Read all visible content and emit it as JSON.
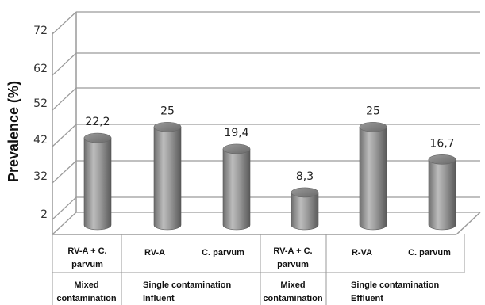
{
  "chart_data": {
    "type": "bar",
    "style": "3d-cylinder",
    "ylabel": "Prevalence (%)",
    "y_tick_labels": [
      "2",
      "32",
      "42",
      "52",
      "62",
      "72"
    ],
    "categories": [
      "RV-A + C. parvum",
      "RV-A",
      "C. parvum",
      "RV-A + C. parvum",
      "R-VA",
      "C. parvum"
    ],
    "category_lines": [
      [
        "RV-A + C.",
        "parvum"
      ],
      [
        "RV-A"
      ],
      [
        "C. parvum"
      ],
      [
        "RV-A + C.",
        "parvum"
      ],
      [
        "R-VA"
      ],
      [
        "C. parvum"
      ]
    ],
    "values": [
      22.2,
      25,
      19.4,
      8.3,
      25,
      16.7
    ],
    "value_labels": [
      "22,2",
      "25",
      "19,4",
      "8,3",
      "25",
      "16,7"
    ],
    "groups": [
      {
        "lines": [
          "Mixed",
          "contamination"
        ],
        "span": 1
      },
      {
        "lines": [
          "Single contamination",
          "Influent"
        ],
        "span": 2
      },
      {
        "lines": [
          "Mixed",
          "contamination"
        ],
        "span": 1
      },
      {
        "lines": [
          "Single contamination",
          "Effluent"
        ],
        "span": 2
      }
    ],
    "bar_color": "#8c8c8c",
    "grid": true,
    "legend": "none"
  }
}
